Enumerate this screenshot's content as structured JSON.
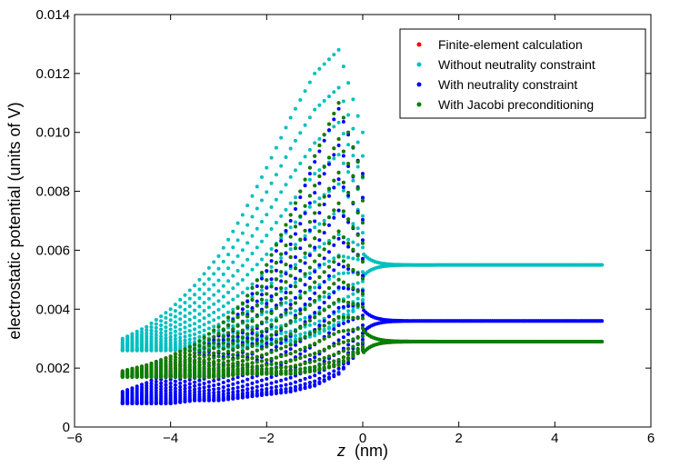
{
  "chart_data": {
    "type": "scatter",
    "title": "",
    "xlabel": "z",
    "xlabel_unit": "(nm)",
    "ylabel": "electrostatic potential (units of V)",
    "xlim": [
      -6,
      6
    ],
    "ylim": [
      0,
      0.014
    ],
    "xticks": [
      -6,
      -4,
      -2,
      0,
      2,
      4,
      6
    ],
    "yticks": [
      0,
      0.002,
      0.004,
      0.006,
      0.008,
      0.01,
      0.012,
      0.014
    ],
    "ytick_labels": [
      "0",
      "0.002",
      "0.004",
      "0.006",
      "0.008",
      "0.010",
      "0.012",
      "0.014"
    ],
    "xtick_labels": [
      "−6",
      "−4",
      "−2",
      "0",
      "2",
      "4",
      "6"
    ],
    "grid": false,
    "legend_position": "top-right",
    "series": [
      {
        "name": "Finite-element calculation",
        "color": "#ff0000",
        "x": [
          -5.0,
          -4.5,
          -4.0,
          -3.5,
          -3.0,
          -2.5,
          -2.0,
          -1.5,
          -1.0,
          -0.5,
          0.0
        ],
        "y_min": [
          0.0017,
          0.0017,
          0.0017,
          0.0017,
          0.0017,
          0.0018,
          0.0018,
          0.0018,
          0.0019,
          0.0021,
          0.0026
        ],
        "y_max": [
          0.0019,
          0.0021,
          0.0024,
          0.0028,
          0.0034,
          0.0042,
          0.0055,
          0.0072,
          0.0092,
          0.011,
          0.0085
        ],
        "plateau": 0.0029
      },
      {
        "name": "Without neutrality constraint",
        "color": "#00bfbf",
        "x": [
          -5.0,
          -4.5,
          -4.0,
          -3.5,
          -3.0,
          -2.5,
          -2.0,
          -1.5,
          -1.0,
          -0.5,
          0.0
        ],
        "y_min": [
          0.0026,
          0.0026,
          0.0026,
          0.0026,
          0.0027,
          0.0027,
          0.0028,
          0.0029,
          0.0031,
          0.0035,
          0.0042
        ],
        "y_max": [
          0.003,
          0.0034,
          0.004,
          0.0048,
          0.0058,
          0.0072,
          0.0088,
          0.0105,
          0.012,
          0.0128,
          0.01
        ],
        "plateau": 0.0055
      },
      {
        "name": "With neutrality constraint",
        "color": "#0000ff",
        "x": [
          -5.0,
          -4.5,
          -4.0,
          -3.5,
          -3.0,
          -2.5,
          -2.0,
          -1.5,
          -1.0,
          -0.5,
          0.0
        ],
        "y_min": [
          0.0008,
          0.0008,
          0.0008,
          0.0009,
          0.0009,
          0.001,
          0.0011,
          0.0012,
          0.0014,
          0.0018,
          0.0027
        ],
        "y_max": [
          0.0012,
          0.0015,
          0.0019,
          0.0024,
          0.0031,
          0.004,
          0.0053,
          0.007,
          0.009,
          0.0108,
          0.0086
        ],
        "plateau": 0.0036
      },
      {
        "name": "With Jacobi preconditioning",
        "color": "#008000",
        "x": [
          -5.0,
          -4.5,
          -4.0,
          -3.5,
          -3.0,
          -2.5,
          -2.0,
          -1.5,
          -1.0,
          -0.5,
          0.0
        ],
        "y_min": [
          0.0017,
          0.0017,
          0.0017,
          0.0017,
          0.0017,
          0.0018,
          0.0018,
          0.0018,
          0.0019,
          0.0021,
          0.0026
        ],
        "y_max": [
          0.0019,
          0.0021,
          0.0024,
          0.0028,
          0.0034,
          0.0042,
          0.0055,
          0.0072,
          0.0092,
          0.011,
          0.0085
        ],
        "plateau": 0.0029
      }
    ],
    "plateau_x_range": [
      0.0,
      5.0
    ]
  }
}
